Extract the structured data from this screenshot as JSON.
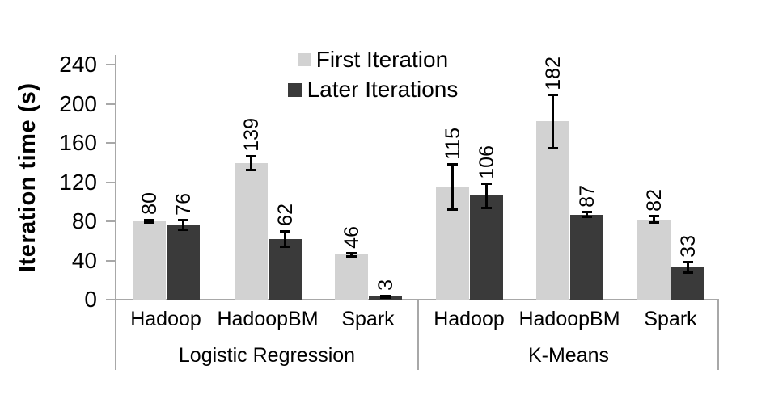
{
  "chart_data": {
    "type": "bar",
    "title": "",
    "ylabel": "Iteration time (s)",
    "ylim": [
      0,
      260
    ],
    "yticks": [
      0,
      40,
      80,
      120,
      160,
      200,
      240
    ],
    "grid": false,
    "legend_position": "top-center-inside",
    "groups": [
      {
        "label": "Logistic Regression",
        "categories": [
          "Hadoop",
          "HadoopBM",
          "Spark"
        ]
      },
      {
        "label": "K-Means",
        "categories": [
          "Hadoop",
          "HadoopBM",
          "Spark"
        ]
      }
    ],
    "series": [
      {
        "name": "First Iteration",
        "color": "#d2d2d2",
        "values": [
          80,
          139,
          46,
          115,
          182,
          82
        ],
        "errors": [
          1.5,
          7,
          1.5,
          23,
          27,
          3
        ]
      },
      {
        "name": "Later Iterations",
        "color": "#3a3a3a",
        "values": [
          76,
          62,
          3,
          106,
          87,
          33
        ],
        "errors": [
          5,
          8,
          1,
          12,
          2.5,
          5
        ]
      }
    ],
    "error_bar_color": "#000000",
    "axis_color": "#a8a8a8",
    "text_color": "#000000"
  }
}
